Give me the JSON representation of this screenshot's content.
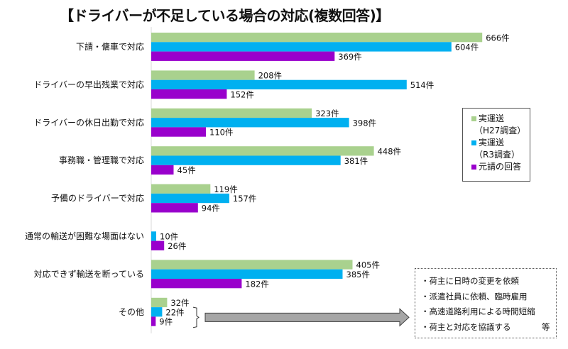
{
  "chart_data": {
    "type": "bar",
    "orientation": "horizontal",
    "title": "【ドライバーが不足している場合の対応(複数回答)】",
    "xlabel": "",
    "ylabel": "",
    "unit_suffix": "件",
    "xlim": [
      0,
      800
    ],
    "grid": false,
    "legend_position": "right",
    "categories": [
      "下請・傭車で対応",
      "ドライバーの早出残業で対応",
      "ドライバーの休日出勤で対応",
      "事務職・管理職で対応",
      "予備のドライバーで対応",
      "通常の輸送が困難な場面はない",
      "対応できず輸送を断っている",
      "その他"
    ],
    "series": [
      {
        "name": "実運送（H27調査）",
        "legend_line1": "実運送",
        "legend_line2": "（H27調査）",
        "color": "#a9d18e",
        "values": [
          666,
          208,
          323,
          448,
          119,
          null,
          405,
          32
        ]
      },
      {
        "name": "実運送（R3調査）",
        "legend_line1": "実運送",
        "legend_line2": "（R3調査）",
        "color": "#00b0f0",
        "values": [
          604,
          514,
          398,
          381,
          157,
          10,
          385,
          22
        ]
      },
      {
        "name": "元請の回答",
        "legend_line1": "元請の回答",
        "legend_line2": "",
        "color": "#9900cc",
        "values": [
          369,
          152,
          110,
          45,
          94,
          26,
          182,
          9
        ]
      }
    ],
    "annotation": {
      "lines": [
        "・荷主に日時の変更を依頼",
        "・派遣社員に依頼、臨時雇用",
        "・高速道路利用による時間短縮",
        "・荷主と対応を協議する"
      ],
      "suffix": "等",
      "refers_to": "その他"
    }
  }
}
